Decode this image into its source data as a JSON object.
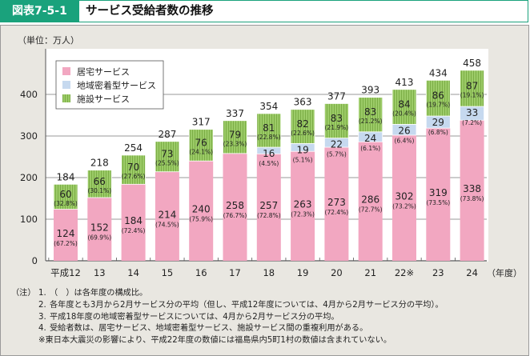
{
  "header": {
    "figure_no": "図表7-5-1",
    "title": "サービス受給者数の推移"
  },
  "colors": {
    "accent": "#1aa27c",
    "home_service": "#f2a7c1",
    "community_service": "#c6d9ef",
    "facility_service": "#8fc15a",
    "panel_bg": "#e9e7e1"
  },
  "chart_data": {
    "type": "bar",
    "stacked": true,
    "title": "サービス受給者数の推移",
    "unit_label": "（単位：万人）",
    "xlabel": "（年度）",
    "ylabel": "",
    "ylim": [
      0,
      400
    ],
    "yticks": [
      0,
      100,
      200,
      300,
      400
    ],
    "grid": true,
    "legend_position": "top-left",
    "categories": [
      "平成12",
      "13",
      "14",
      "15",
      "16",
      "17",
      "18",
      "19",
      "20",
      "21",
      "22※",
      "23",
      "24"
    ],
    "series": [
      {
        "name": "居宅サービス",
        "color": "#f2a7c1",
        "values": [
          124,
          152,
          184,
          214,
          240,
          258,
          257,
          263,
          273,
          286,
          302,
          319,
          338
        ],
        "shares": [
          "(67.2%)",
          "(69.9%)",
          "(72.4%)",
          "(74.5%)",
          "(75.9%)",
          "(76.7%)",
          "(72.8%)",
          "(72.3%)",
          "(72.4%)",
          "(72.7%)",
          "(73.2%)",
          "(73.5%)",
          "(73.8%)"
        ]
      },
      {
        "name": "地域密着型サービス",
        "color": "#c6d9ef",
        "values": [
          null,
          null,
          null,
          null,
          null,
          null,
          16,
          19,
          22,
          24,
          26,
          29,
          33
        ],
        "shares": [
          null,
          null,
          null,
          null,
          null,
          null,
          "(4.5%)",
          "(5.1%)",
          "(5.7%)",
          "(6.1%)",
          "(6.4%)",
          "(6.8%)",
          "(7.2%)"
        ]
      },
      {
        "name": "施設サービス",
        "color": "#8fc15a",
        "values": [
          60,
          66,
          70,
          73,
          76,
          79,
          81,
          82,
          83,
          83,
          84,
          86,
          87
        ],
        "shares": [
          "(32.8%)",
          "(30.1%)",
          "(27.6%)",
          "(25.5%)",
          "(24.1%)",
          "(23.3%)",
          "(22.8%)",
          "(22.6%)",
          "(21.9%)",
          "(21.2%)",
          "(20.4%)",
          "(19.7%)",
          "(19.1%)"
        ]
      }
    ],
    "totals": [
      184,
      218,
      254,
      287,
      317,
      337,
      354,
      363,
      377,
      393,
      413,
      434,
      458
    ]
  },
  "notes": {
    "label": "（注）",
    "items": [
      {
        "num": "1.",
        "text": "（　）は各年度の構成比。"
      },
      {
        "num": "2.",
        "text": "各年度とも3月から2月サービス分の平均（但し、平成12年度については、4月から2月サービス分の平均）。"
      },
      {
        "num": "3.",
        "text": "平成18年度の地域密着型サービスについては、4月から2月サービス分の平均。"
      },
      {
        "num": "4.",
        "text": "受給者数は、居宅サービス、地域密着型サービス、施設サービス間の重複利用がある。"
      }
    ],
    "footnote": "※東日本大震災の影響により、平成22年度の数値には福島県内5町1村の数値は含まれていない。"
  }
}
